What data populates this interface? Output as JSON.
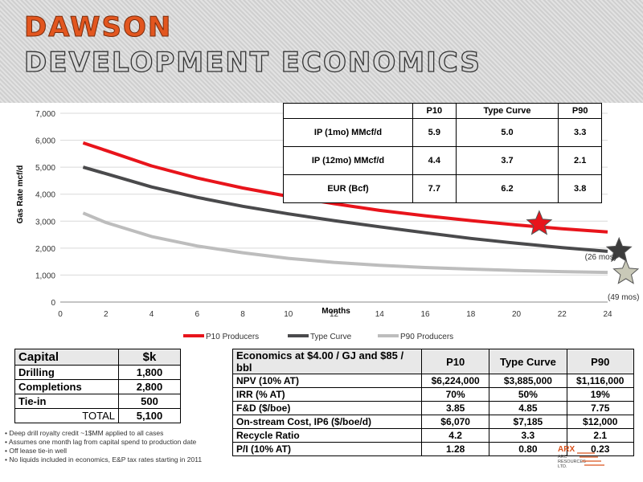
{
  "title": {
    "line1": "DAWSON",
    "line2": "DEVELOPMENT ECONOMICS"
  },
  "chart_data": {
    "type": "line",
    "xlabel": "Months",
    "ylabel": "Gas Rate mcf/d",
    "xlim": [
      0,
      24
    ],
    "ylim": [
      0,
      7000
    ],
    "x_ticks": [
      "0",
      "2",
      "4",
      "6",
      "8",
      "10",
      "12",
      "14",
      "16",
      "18",
      "20",
      "22",
      "24"
    ],
    "y_ticks": [
      "0",
      "1,000",
      "2,000",
      "3,000",
      "4,000",
      "5,000",
      "6,000",
      "7,000"
    ],
    "grid": "horizontal",
    "legend_position": "bottom",
    "series": [
      {
        "name": "P10 Producers",
        "color": "#e8141b",
        "x": [
          1,
          2,
          4,
          6,
          8,
          10,
          12,
          14,
          16,
          18,
          20,
          22,
          24
        ],
        "y": [
          5900,
          5620,
          5050,
          4600,
          4230,
          3920,
          3650,
          3400,
          3200,
          3020,
          2860,
          2720,
          2600
        ]
      },
      {
        "name": "Type Curve",
        "color": "#4a4a4c",
        "x": [
          1,
          2,
          4,
          6,
          8,
          10,
          12,
          14,
          16,
          18,
          20,
          22,
          24
        ],
        "y": [
          5000,
          4760,
          4270,
          3880,
          3550,
          3270,
          3020,
          2790,
          2570,
          2360,
          2180,
          2020,
          1880
        ]
      },
      {
        "name": "P90 Producers",
        "color": "#bdbdbd",
        "x": [
          1,
          2,
          4,
          6,
          8,
          10,
          12,
          14,
          16,
          18,
          20,
          22,
          24
        ],
        "y": [
          3300,
          2950,
          2430,
          2080,
          1830,
          1620,
          1470,
          1360,
          1280,
          1220,
          1170,
          1130,
          1100
        ]
      }
    ],
    "markers": [
      {
        "x": 21,
        "y": 2900,
        "color": "#e8141b"
      },
      {
        "x": 24.5,
        "y": 1900,
        "color": "#3c3c3c"
      },
      {
        "x": 24.8,
        "y": 1080,
        "color": "#c9c9b8"
      }
    ],
    "annotations": [
      {
        "text": "(26 mos)",
        "x": 23.0,
        "y": 1580
      },
      {
        "text": "(49 mos)",
        "x": 24.0,
        "y": 90
      }
    ]
  },
  "kpi_table": {
    "headers": [
      "",
      "P10",
      "Type Curve",
      "P90"
    ],
    "rows": [
      [
        "IP (1mo) MMcf/d",
        "5.9",
        "5.0",
        "3.3"
      ],
      [
        "IP (12mo) MMcf/d",
        "4.4",
        "3.7",
        "2.1"
      ],
      [
        "EUR (Bcf)",
        "7.7",
        "6.2",
        "3.8"
      ]
    ]
  },
  "capital_table": {
    "headers": [
      "Capital",
      "$k"
    ],
    "rows": [
      [
        "Drilling",
        "1,800"
      ],
      [
        "Completions",
        "2,800"
      ],
      [
        "Tie-in",
        "500"
      ],
      [
        "TOTAL",
        "5,100"
      ]
    ]
  },
  "economics_table": {
    "headers": [
      "Economics at $4.00 / GJ and $85 / bbl",
      "P10",
      "Type Curve",
      "P90"
    ],
    "rows": [
      [
        "NPV (10% AT)",
        "$6,224,000",
        "$3,885,000",
        "$1,116,000"
      ],
      [
        "IRR (% AT)",
        "70%",
        "50%",
        "19%"
      ],
      [
        "F&D ($/boe)",
        "3.85",
        "4.85",
        "7.75"
      ],
      [
        "On-stream Cost, IP6 ($/boe/d)",
        "$6,070",
        "$7,185",
        "$12,000"
      ],
      [
        "Recycle Ratio",
        "4.2",
        "3.3",
        "2.1"
      ],
      [
        "P/I (10% AT)",
        "1.28",
        "0.80",
        "0.23"
      ]
    ]
  },
  "notes": [
    "• Deep drill royalty credit ~1$MM applied to all cases",
    "•  Assumes one month lag from capital spend to production date",
    "• Off lease tie-in well",
    "• No liquids included in economics, E&P tax rates starting in 2011"
  ],
  "logo": {
    "name": "ARX",
    "sub1": "ARC",
    "sub2": "RESOURCES",
    "sub3": "LTD.",
    "color": "#d9531e"
  }
}
